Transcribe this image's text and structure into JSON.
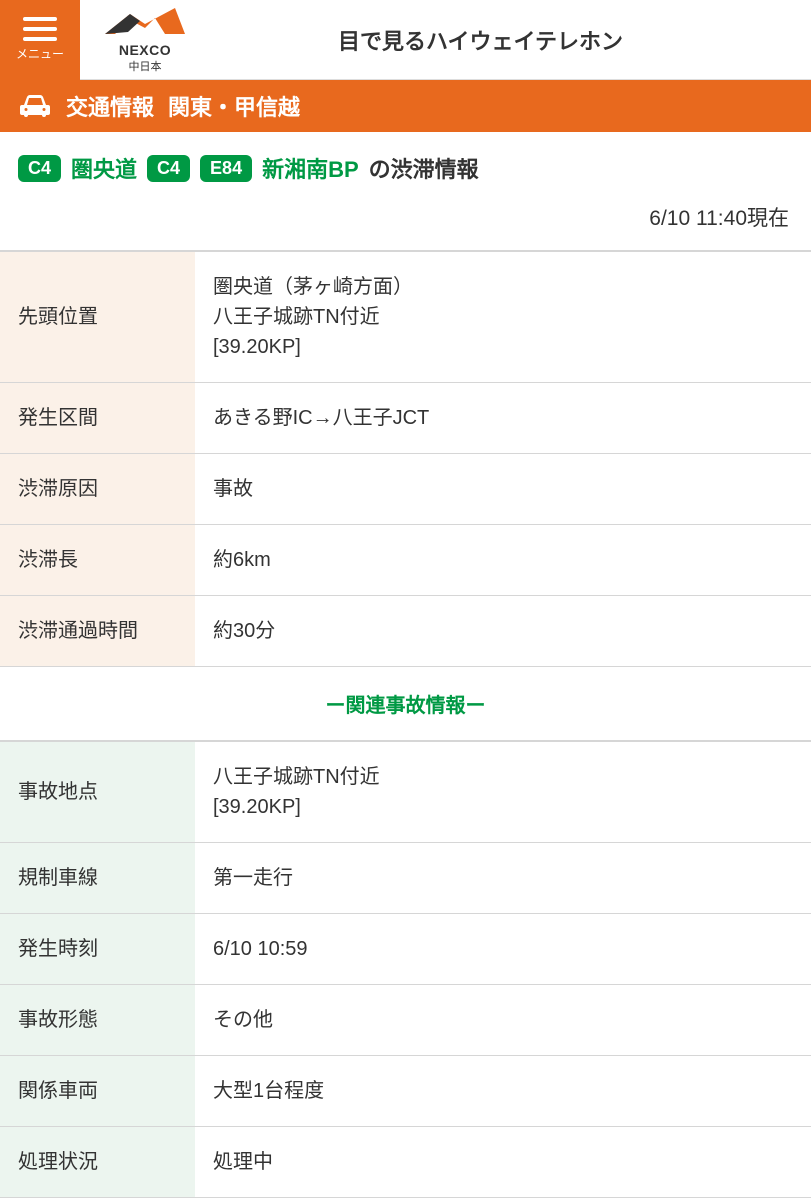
{
  "header": {
    "menu_label": "メニュー",
    "logo_text": "NEXCO",
    "logo_sub": "中日本",
    "title": "目で見るハイウェイテレホン"
  },
  "orange_bar": {
    "label": "交通情報",
    "region": "関東・甲信越"
  },
  "route": {
    "badge1": "C4",
    "name1": "圏央道",
    "badge2": "C4",
    "badge3": "E84",
    "name2": "新湘南BP",
    "suffix": "の渋滞情報"
  },
  "timestamp": "6/10 11:40現在",
  "congestion": {
    "rows": [
      {
        "label": "先頭位置",
        "value": "圏央道（茅ヶ崎方面）\n八王子城跡TN付近\n[39.20KP]"
      },
      {
        "label": "発生区間",
        "value": "あきる野IC→八王子JCT"
      },
      {
        "label": "渋滞原因",
        "value": "事故"
      },
      {
        "label": "渋滞長",
        "value": "約6km"
      },
      {
        "label": "渋滞通過時間",
        "value": "約30分"
      }
    ]
  },
  "section_header": "ー関連事故情報ー",
  "accident": {
    "rows": [
      {
        "label": "事故地点",
        "value": "八王子城跡TN付近\n[39.20KP]"
      },
      {
        "label": "規制車線",
        "value": "第一走行"
      },
      {
        "label": "発生時刻",
        "value": "6/10 10:59"
      },
      {
        "label": "事故形態",
        "value": "その他"
      },
      {
        "label": "関係車両",
        "value": "大型1台程度"
      },
      {
        "label": "処理状況",
        "value": "処理中"
      }
    ]
  },
  "colors": {
    "accent_orange": "#e8691e",
    "accent_green": "#009944",
    "cream_bg": "#fbf1e8",
    "mint_bg": "#ecf5ef",
    "border": "#d6d6d6"
  }
}
